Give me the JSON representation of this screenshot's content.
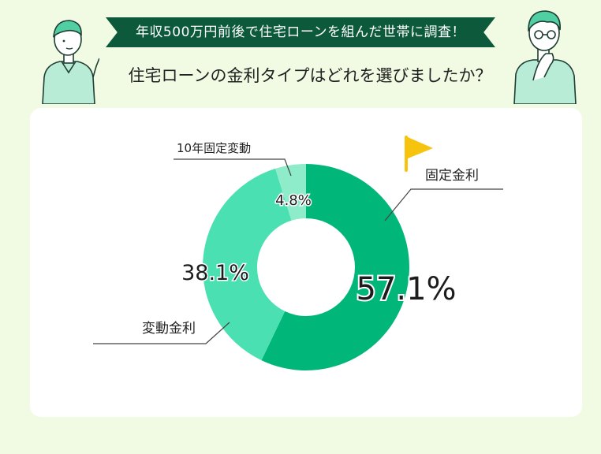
{
  "header": {
    "banner": "年収500万円前後で住宅ローンを組んだ世帯に調査！",
    "question": "住宅ローンの金利タイプはどれを選びましたか？"
  },
  "chart_data": {
    "type": "pie",
    "donut": true,
    "categories": [
      "固定金利",
      "変動金利",
      "10年固定変動"
    ],
    "values": [
      57.1,
      38.1,
      4.8
    ],
    "value_labels": [
      "57.1%",
      "38.1%",
      "4.8%"
    ],
    "colors": [
      "#00b779",
      "#4be0b1",
      "#8eeccb"
    ],
    "highlight": "固定金利",
    "legend": "none"
  },
  "colors": {
    "background": "#f1fbe3",
    "banner": "#0c5a3b",
    "card": "#ffffff",
    "flag": "#f6c40f",
    "leader_line": "#444444"
  },
  "icons": {
    "highlight_marker": "flag-icon",
    "left_figure": "person-pointing-icon",
    "right_figure": "person-thinking-icon"
  }
}
